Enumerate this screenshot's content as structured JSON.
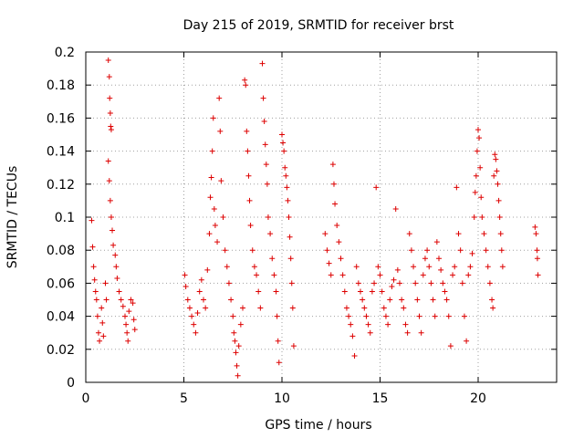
{
  "colors": {
    "series": "#dd0000",
    "axis": "#000000",
    "grid": "#a0a0a0",
    "background": "#ffffff"
  },
  "chart_data": {
    "type": "scatter",
    "title": "Day 215 of 2019, SRMTID for receiver brst",
    "xlabel": "GPS time / hours",
    "ylabel": "SRMTID / TECUs",
    "xlim": [
      0,
      24
    ],
    "ylim": [
      0,
      0.2
    ],
    "xticks": [
      0,
      5,
      10,
      15,
      20
    ],
    "xtick_labels": [
      "0",
      "5",
      "10",
      "15",
      "20"
    ],
    "yticks": [
      0,
      0.02,
      0.04,
      0.06,
      0.08,
      0.1,
      0.12,
      0.14,
      0.16,
      0.18,
      0.2
    ],
    "ytick_labels": [
      "0",
      "0.02",
      "0.04",
      "0.06",
      "0.08",
      "0.1",
      "0.12",
      "0.14",
      "0.16",
      "0.18",
      "0.2"
    ],
    "grid": true,
    "marker": "plus",
    "series": [
      {
        "name": "SRMTID",
        "points": [
          [
            0.3,
            0.098
          ],
          [
            0.35,
            0.082
          ],
          [
            0.4,
            0.07
          ],
          [
            0.45,
            0.062
          ],
          [
            0.5,
            0.055
          ],
          [
            0.55,
            0.05
          ],
          [
            0.6,
            0.04
          ],
          [
            0.65,
            0.03
          ],
          [
            0.7,
            0.025
          ],
          [
            0.8,
            0.045
          ],
          [
            0.85,
            0.036
          ],
          [
            0.9,
            0.028
          ],
          [
            1.0,
            0.06
          ],
          [
            1.05,
            0.05
          ],
          [
            1.15,
            0.195
          ],
          [
            1.2,
            0.185
          ],
          [
            1.22,
            0.172
          ],
          [
            1.25,
            0.163
          ],
          [
            1.27,
            0.155
          ],
          [
            1.3,
            0.153
          ],
          [
            1.15,
            0.134
          ],
          [
            1.2,
            0.122
          ],
          [
            1.25,
            0.11
          ],
          [
            1.3,
            0.1
          ],
          [
            1.35,
            0.092
          ],
          [
            1.4,
            0.083
          ],
          [
            1.5,
            0.077
          ],
          [
            1.55,
            0.07
          ],
          [
            1.6,
            0.063
          ],
          [
            1.7,
            0.055
          ],
          [
            1.8,
            0.05
          ],
          [
            1.9,
            0.046
          ],
          [
            2.0,
            0.04
          ],
          [
            2.05,
            0.035
          ],
          [
            2.1,
            0.03
          ],
          [
            2.15,
            0.025
          ],
          [
            2.2,
            0.043
          ],
          [
            2.3,
            0.05
          ],
          [
            2.4,
            0.048
          ],
          [
            2.45,
            0.038
          ],
          [
            2.5,
            0.032
          ],
          [
            5.05,
            0.065
          ],
          [
            5.1,
            0.058
          ],
          [
            5.2,
            0.05
          ],
          [
            5.3,
            0.045
          ],
          [
            5.4,
            0.04
          ],
          [
            5.5,
            0.035
          ],
          [
            5.6,
            0.03
          ],
          [
            5.7,
            0.042
          ],
          [
            5.8,
            0.055
          ],
          [
            5.9,
            0.062
          ],
          [
            6.0,
            0.05
          ],
          [
            6.1,
            0.045
          ],
          [
            6.2,
            0.068
          ],
          [
            6.3,
            0.09
          ],
          [
            6.35,
            0.112
          ],
          [
            6.4,
            0.124
          ],
          [
            6.45,
            0.14
          ],
          [
            6.5,
            0.16
          ],
          [
            6.55,
            0.105
          ],
          [
            6.6,
            0.095
          ],
          [
            6.7,
            0.085
          ],
          [
            6.8,
            0.172
          ],
          [
            6.85,
            0.152
          ],
          [
            6.9,
            0.122
          ],
          [
            7.0,
            0.1
          ],
          [
            7.1,
            0.08
          ],
          [
            7.2,
            0.07
          ],
          [
            7.3,
            0.06
          ],
          [
            7.4,
            0.05
          ],
          [
            7.5,
            0.04
          ],
          [
            7.55,
            0.03
          ],
          [
            7.6,
            0.025
          ],
          [
            7.65,
            0.018
          ],
          [
            7.7,
            0.01
          ],
          [
            7.75,
            0.004
          ],
          [
            7.8,
            0.022
          ],
          [
            7.9,
            0.035
          ],
          [
            8.0,
            0.045
          ],
          [
            8.1,
            0.183
          ],
          [
            8.15,
            0.18
          ],
          [
            8.2,
            0.152
          ],
          [
            8.25,
            0.14
          ],
          [
            8.3,
            0.125
          ],
          [
            8.35,
            0.11
          ],
          [
            8.4,
            0.095
          ],
          [
            8.5,
            0.08
          ],
          [
            8.6,
            0.07
          ],
          [
            8.7,
            0.065
          ],
          [
            8.8,
            0.055
          ],
          [
            8.9,
            0.045
          ],
          [
            9.0,
            0.193
          ],
          [
            9.05,
            0.172
          ],
          [
            9.1,
            0.158
          ],
          [
            9.15,
            0.144
          ],
          [
            9.2,
            0.132
          ],
          [
            9.25,
            0.12
          ],
          [
            9.3,
            0.1
          ],
          [
            9.4,
            0.09
          ],
          [
            9.5,
            0.075
          ],
          [
            9.6,
            0.065
          ],
          [
            9.7,
            0.055
          ],
          [
            9.75,
            0.04
          ],
          [
            9.8,
            0.025
          ],
          [
            9.85,
            0.012
          ],
          [
            10.0,
            0.15
          ],
          [
            10.05,
            0.145
          ],
          [
            10.1,
            0.14
          ],
          [
            10.15,
            0.13
          ],
          [
            10.2,
            0.125
          ],
          [
            10.25,
            0.118
          ],
          [
            10.3,
            0.11
          ],
          [
            10.35,
            0.1
          ],
          [
            10.4,
            0.088
          ],
          [
            10.45,
            0.075
          ],
          [
            10.5,
            0.06
          ],
          [
            10.55,
            0.045
          ],
          [
            10.6,
            0.022
          ],
          [
            12.2,
            0.09
          ],
          [
            12.3,
            0.08
          ],
          [
            12.4,
            0.072
          ],
          [
            12.5,
            0.065
          ],
          [
            12.6,
            0.132
          ],
          [
            12.65,
            0.12
          ],
          [
            12.7,
            0.108
          ],
          [
            12.8,
            0.095
          ],
          [
            12.9,
            0.085
          ],
          [
            13.0,
            0.075
          ],
          [
            13.1,
            0.065
          ],
          [
            13.2,
            0.055
          ],
          [
            13.3,
            0.045
          ],
          [
            13.4,
            0.04
          ],
          [
            13.5,
            0.035
          ],
          [
            13.6,
            0.028
          ],
          [
            13.7,
            0.016
          ],
          [
            13.8,
            0.07
          ],
          [
            13.9,
            0.06
          ],
          [
            14.0,
            0.055
          ],
          [
            14.1,
            0.05
          ],
          [
            14.2,
            0.045
          ],
          [
            14.3,
            0.04
          ],
          [
            14.4,
            0.035
          ],
          [
            14.5,
            0.03
          ],
          [
            14.6,
            0.055
          ],
          [
            14.7,
            0.06
          ],
          [
            14.8,
            0.118
          ],
          [
            14.9,
            0.07
          ],
          [
            15.0,
            0.065
          ],
          [
            15.1,
            0.055
          ],
          [
            15.2,
            0.045
          ],
          [
            15.3,
            0.04
          ],
          [
            15.4,
            0.035
          ],
          [
            15.5,
            0.05
          ],
          [
            15.6,
            0.058
          ],
          [
            15.7,
            0.062
          ],
          [
            15.8,
            0.105
          ],
          [
            15.9,
            0.068
          ],
          [
            16.0,
            0.06
          ],
          [
            16.1,
            0.05
          ],
          [
            16.2,
            0.045
          ],
          [
            16.3,
            0.035
          ],
          [
            16.4,
            0.03
          ],
          [
            16.5,
            0.09
          ],
          [
            16.6,
            0.08
          ],
          [
            16.7,
            0.07
          ],
          [
            16.8,
            0.06
          ],
          [
            16.9,
            0.05
          ],
          [
            17.0,
            0.04
          ],
          [
            17.1,
            0.03
          ],
          [
            17.2,
            0.065
          ],
          [
            17.3,
            0.075
          ],
          [
            17.4,
            0.08
          ],
          [
            17.5,
            0.07
          ],
          [
            17.6,
            0.06
          ],
          [
            17.7,
            0.05
          ],
          [
            17.8,
            0.04
          ],
          [
            17.9,
            0.085
          ],
          [
            18.0,
            0.075
          ],
          [
            18.1,
            0.068
          ],
          [
            18.2,
            0.06
          ],
          [
            18.3,
            0.055
          ],
          [
            18.4,
            0.05
          ],
          [
            18.5,
            0.04
          ],
          [
            18.6,
            0.022
          ],
          [
            18.7,
            0.065
          ],
          [
            18.8,
            0.07
          ],
          [
            18.9,
            0.118
          ],
          [
            19.0,
            0.09
          ],
          [
            19.1,
            0.08
          ],
          [
            19.2,
            0.06
          ],
          [
            19.3,
            0.04
          ],
          [
            19.4,
            0.025
          ],
          [
            19.5,
            0.065
          ],
          [
            19.6,
            0.07
          ],
          [
            19.7,
            0.078
          ],
          [
            19.8,
            0.1
          ],
          [
            19.85,
            0.115
          ],
          [
            19.9,
            0.125
          ],
          [
            19.95,
            0.14
          ],
          [
            20.0,
            0.153
          ],
          [
            20.05,
            0.148
          ],
          [
            20.1,
            0.13
          ],
          [
            20.15,
            0.112
          ],
          [
            20.2,
            0.1
          ],
          [
            20.3,
            0.09
          ],
          [
            20.4,
            0.08
          ],
          [
            20.5,
            0.07
          ],
          [
            20.6,
            0.06
          ],
          [
            20.7,
            0.05
          ],
          [
            20.75,
            0.045
          ],
          [
            20.8,
            0.125
          ],
          [
            20.85,
            0.138
          ],
          [
            20.9,
            0.135
          ],
          [
            20.95,
            0.128
          ],
          [
            21.0,
            0.12
          ],
          [
            21.05,
            0.11
          ],
          [
            21.1,
            0.1
          ],
          [
            21.15,
            0.09
          ],
          [
            21.2,
            0.08
          ],
          [
            21.25,
            0.07
          ],
          [
            22.9,
            0.094
          ],
          [
            22.95,
            0.09
          ],
          [
            23.0,
            0.08
          ],
          [
            23.02,
            0.075
          ],
          [
            23.05,
            0.065
          ]
        ]
      }
    ]
  }
}
